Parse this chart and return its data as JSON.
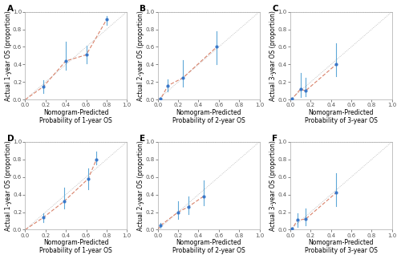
{
  "subplots": [
    {
      "label": "A",
      "xlabel": "Nomogram-Predicted\nProbability of 1-year OS",
      "ylabel": "Actual 1-year OS (proportion)",
      "xlim": [
        0.0,
        1.0
      ],
      "ylim": [
        0.0,
        1.0
      ],
      "xticks": [
        0.0,
        0.2,
        0.4,
        0.6,
        0.8,
        1.0
      ],
      "yticks": [
        0.0,
        0.2,
        0.4,
        0.6,
        0.8,
        1.0
      ],
      "points_x": [
        0.18,
        0.4,
        0.6,
        0.8
      ],
      "points_y": [
        0.15,
        0.44,
        0.51,
        0.91
      ],
      "points_yerr_low": [
        0.07,
        0.1,
        0.1,
        0.06
      ],
      "points_yerr_high": [
        0.07,
        0.22,
        0.1,
        0.04
      ]
    },
    {
      "label": "B",
      "xlabel": "Nomogram-Predicted\nProbability of 2-year OS",
      "ylabel": "Actual 2-year OS (proportion)",
      "xlim": [
        0.0,
        1.0
      ],
      "ylim": [
        0.0,
        1.0
      ],
      "xticks": [
        0.0,
        0.2,
        0.4,
        0.6,
        0.8,
        1.0
      ],
      "yticks": [
        0.0,
        0.2,
        0.4,
        0.6,
        0.8,
        1.0
      ],
      "points_x": [
        0.03,
        0.1,
        0.25,
        0.58
      ],
      "points_y": [
        0.01,
        0.16,
        0.25,
        0.6
      ],
      "points_yerr_low": [
        0.01,
        0.07,
        0.1,
        0.2
      ],
      "points_yerr_high": [
        0.01,
        0.07,
        0.2,
        0.18
      ]
    },
    {
      "label": "C",
      "xlabel": "Nomogram-Predicted\nProbability of 3-year OS",
      "ylabel": "Actual 3-year OS (proportion)",
      "xlim": [
        0.0,
        1.0
      ],
      "ylim": [
        0.0,
        1.0
      ],
      "xticks": [
        0.0,
        0.2,
        0.4,
        0.6,
        0.8,
        1.0
      ],
      "yticks": [
        0.0,
        0.2,
        0.4,
        0.6,
        0.8,
        1.0
      ],
      "points_x": [
        0.02,
        0.1,
        0.15,
        0.45
      ],
      "points_y": [
        0.01,
        0.12,
        0.1,
        0.4
      ],
      "points_yerr_low": [
        0.01,
        0.09,
        0.06,
        0.13
      ],
      "points_yerr_high": [
        0.01,
        0.18,
        0.15,
        0.24
      ]
    },
    {
      "label": "D",
      "xlabel": "Nomogram-Predicted\nProbability of 1-year OS",
      "ylabel": "Actual 1-year OS (proportion)",
      "xlim": [
        0.0,
        1.0
      ],
      "ylim": [
        0.0,
        1.0
      ],
      "xticks": [
        0.0,
        0.2,
        0.4,
        0.6,
        0.8,
        1.0
      ],
      "yticks": [
        0.0,
        0.2,
        0.4,
        0.6,
        0.8,
        1.0
      ],
      "points_x": [
        0.18,
        0.38,
        0.62,
        0.7
      ],
      "points_y": [
        0.14,
        0.32,
        0.58,
        0.8
      ],
      "points_yerr_low": [
        0.05,
        0.08,
        0.12,
        0.06
      ],
      "points_yerr_high": [
        0.05,
        0.16,
        0.12,
        0.09
      ]
    },
    {
      "label": "E",
      "xlabel": "Nomogram-Predicted\nProbability of 2-year OS",
      "ylabel": "Actual 2-year OS (proportion)",
      "xlim": [
        0.0,
        1.0
      ],
      "ylim": [
        0.0,
        1.0
      ],
      "xticks": [
        0.0,
        0.2,
        0.4,
        0.6,
        0.8,
        1.0
      ],
      "yticks": [
        0.0,
        0.2,
        0.4,
        0.6,
        0.8,
        1.0
      ],
      "points_x": [
        0.03,
        0.2,
        0.3,
        0.45
      ],
      "points_y": [
        0.05,
        0.2,
        0.26,
        0.38
      ],
      "points_yerr_low": [
        0.03,
        0.08,
        0.08,
        0.1
      ],
      "points_yerr_high": [
        0.03,
        0.12,
        0.12,
        0.18
      ]
    },
    {
      "label": "F",
      "xlabel": "Nomogram-Predicted\nProbability of 3-year OS",
      "ylabel": "Actual 3-year OS (proportion)",
      "xlim": [
        0.0,
        1.0
      ],
      "ylim": [
        0.0,
        1.0
      ],
      "xticks": [
        0.0,
        0.2,
        0.4,
        0.6,
        0.8,
        1.0
      ],
      "yticks": [
        0.0,
        0.2,
        0.4,
        0.6,
        0.8,
        1.0
      ],
      "points_x": [
        0.02,
        0.07,
        0.15,
        0.45
      ],
      "points_y": [
        0.01,
        0.11,
        0.12,
        0.42
      ],
      "points_yerr_low": [
        0.01,
        0.08,
        0.07,
        0.15
      ],
      "points_yerr_high": [
        0.01,
        0.08,
        0.12,
        0.22
      ]
    }
  ],
  "fit_line_color": "#d9826a",
  "point_color": "#3a78c9",
  "errorbar_color": "#5fa8d8",
  "ref_dot_color": "#b0b0b0",
  "bg_color": "#ffffff",
  "label_fontsize": 5.5,
  "tick_fontsize": 5.0,
  "panel_label_fontsize": 7.5
}
